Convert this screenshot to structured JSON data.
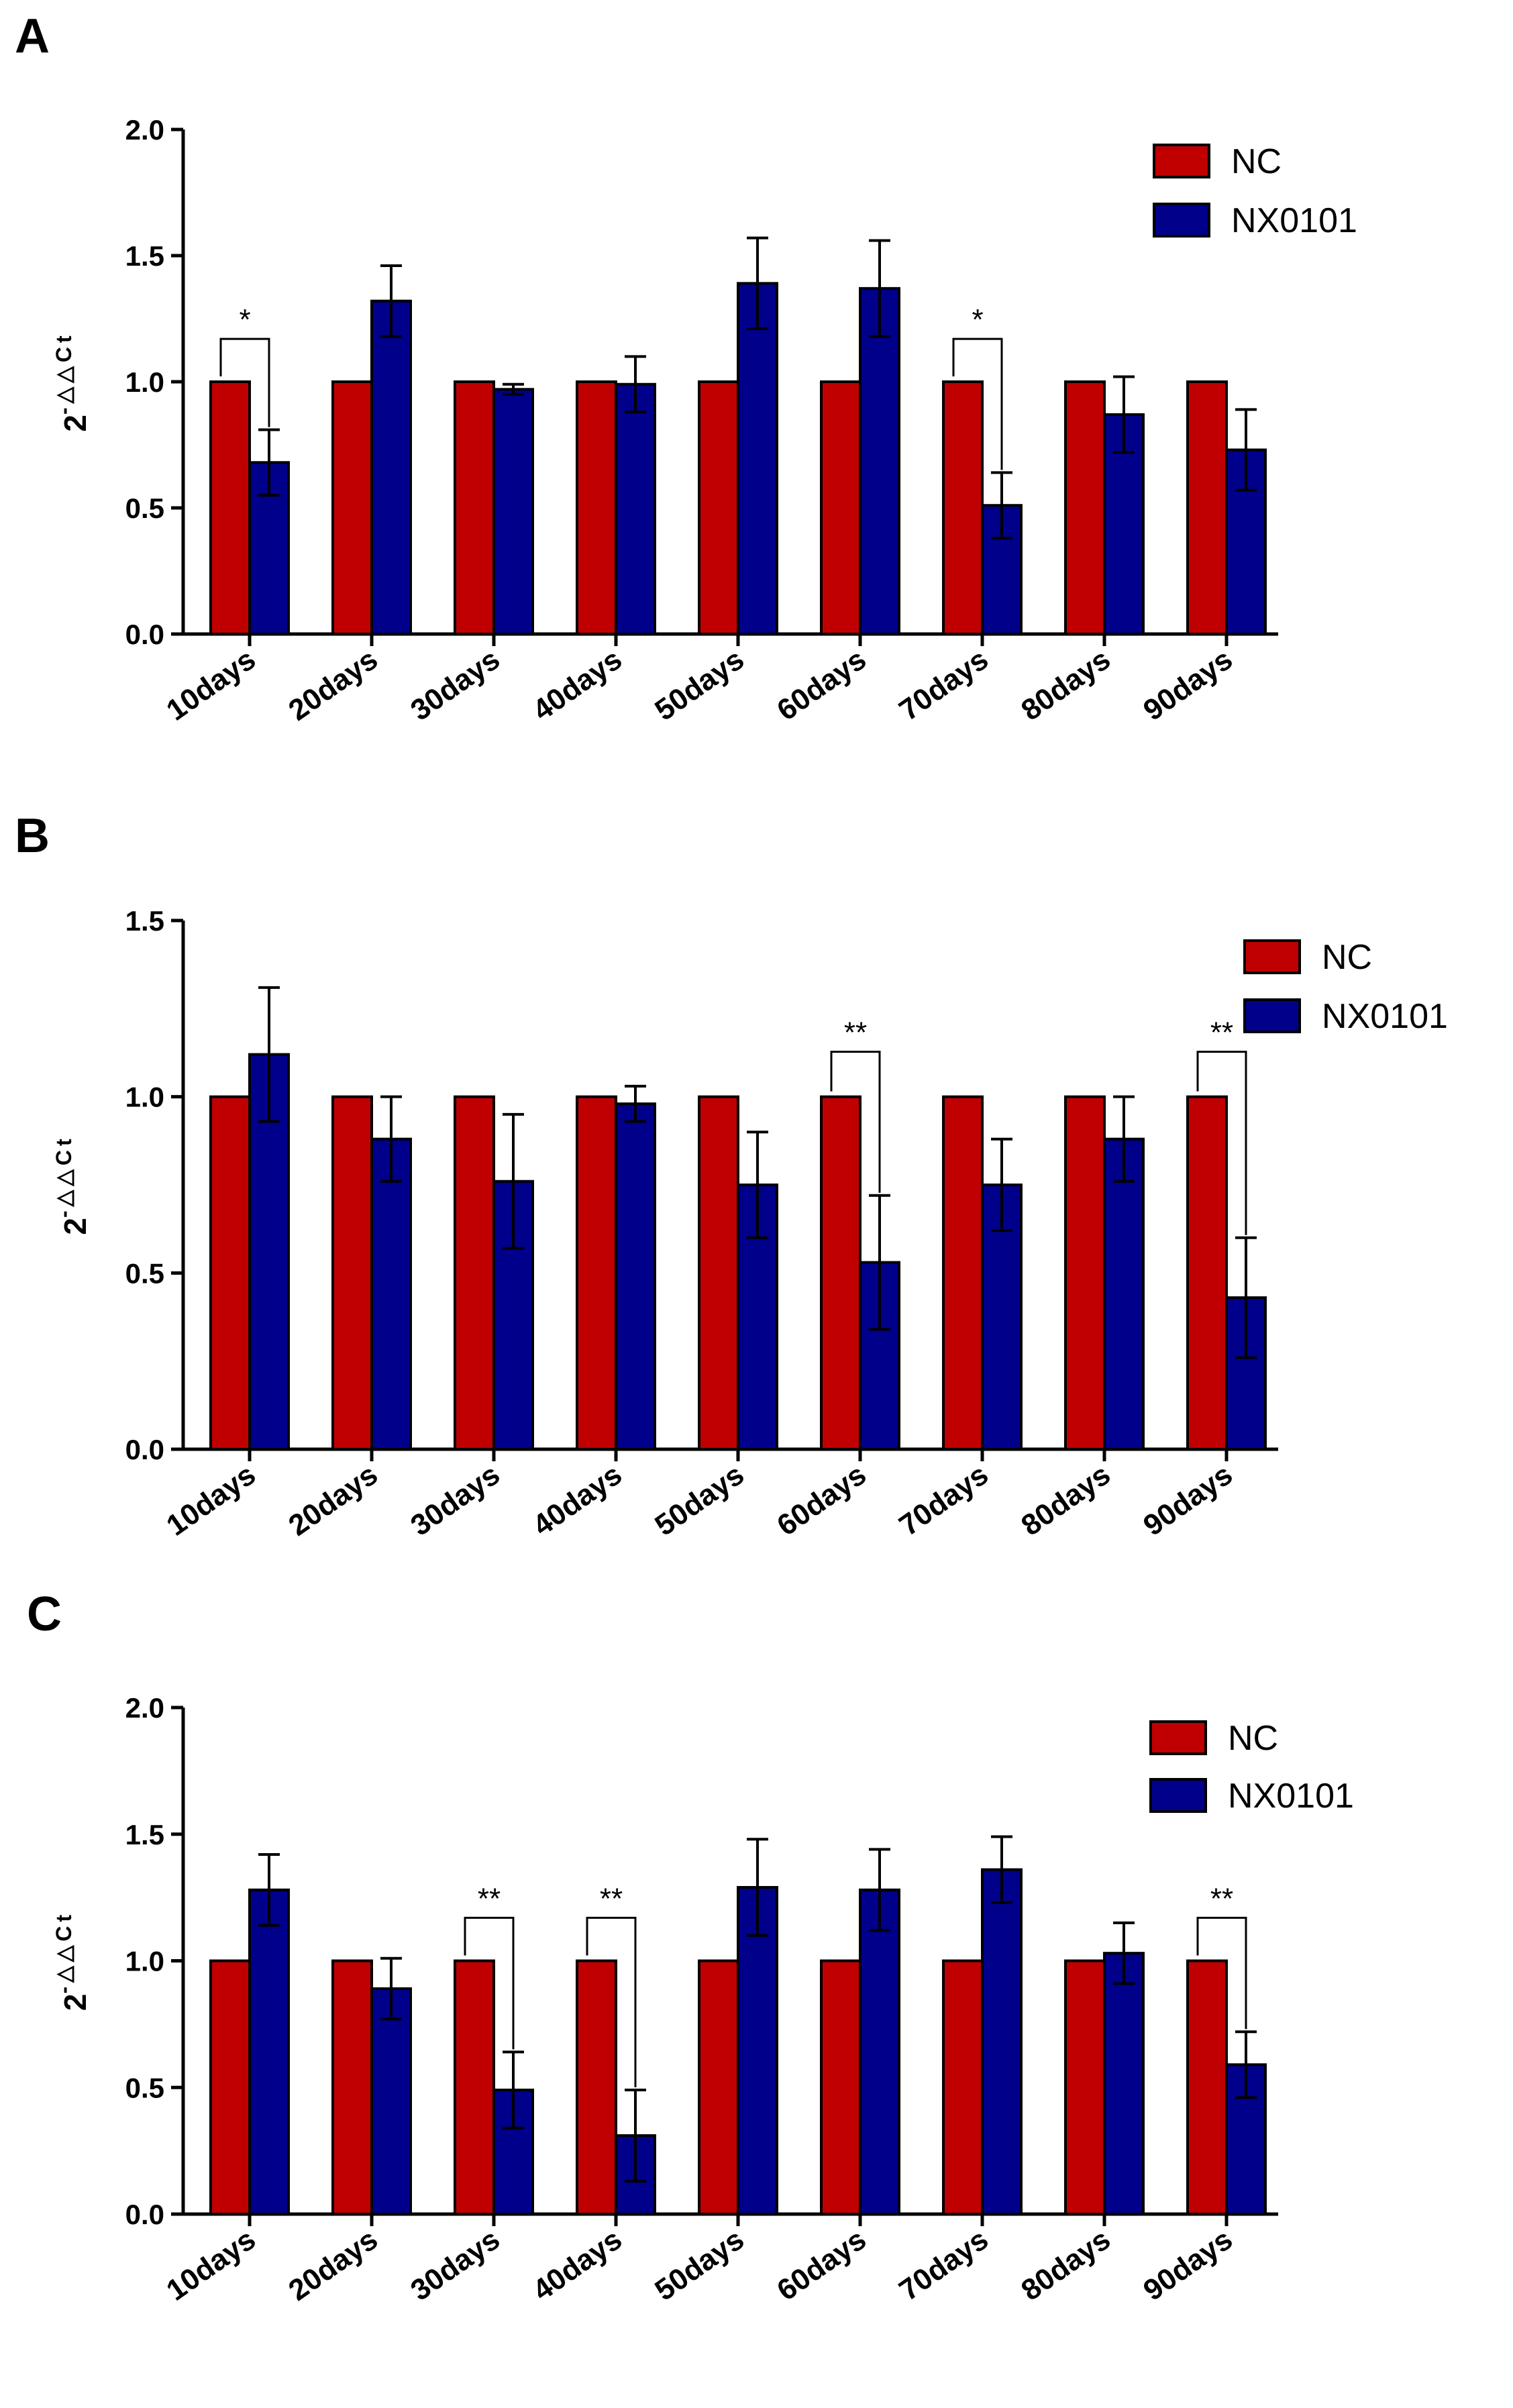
{
  "chart_data": [
    {
      "panel": "A",
      "type": "bar",
      "ylabel": {
        "base": "2",
        "exponent": "-△△Ct"
      },
      "ylim": [
        0,
        2.0
      ],
      "yticks": [
        "0.0",
        "0.5",
        "1.0",
        "1.5",
        "2.0"
      ],
      "categories": [
        "10days",
        "20days",
        "30days",
        "40days",
        "50days",
        "60days",
        "70days",
        "80days",
        "90days"
      ],
      "series": [
        {
          "name": "NC",
          "color": "#c00000",
          "values": [
            1,
            1,
            1,
            1,
            1,
            1,
            1,
            1,
            1
          ],
          "errors": [
            0,
            0,
            0,
            0,
            0,
            0,
            0,
            0,
            0
          ]
        },
        {
          "name": "NX0101",
          "color": "#00008b",
          "values": [
            0.68,
            1.32,
            0.97,
            0.99,
            1.39,
            1.37,
            0.51,
            0.87,
            0.73
          ],
          "errors": [
            0.13,
            0.14,
            0.02,
            0.11,
            0.18,
            0.19,
            0.13,
            0.15,
            0.16
          ]
        }
      ],
      "significance": [
        {
          "category": "10days",
          "label": "*"
        },
        {
          "category": "70days",
          "label": "*"
        }
      ],
      "legend": "top-right"
    },
    {
      "panel": "B",
      "type": "bar",
      "ylabel": {
        "base": "2",
        "exponent": "-△△Ct"
      },
      "ylim": [
        0,
        1.5
      ],
      "yticks": [
        "0.0",
        "0.5",
        "1.0",
        "1.5"
      ],
      "categories": [
        "10days",
        "20days",
        "30days",
        "40days",
        "50days",
        "60days",
        "70days",
        "80days",
        "90days"
      ],
      "series": [
        {
          "name": "NC",
          "color": "#c00000",
          "values": [
            1,
            1,
            1,
            1,
            1,
            1,
            1,
            1,
            1
          ],
          "errors": [
            0,
            0,
            0,
            0,
            0,
            0,
            0,
            0,
            0
          ]
        },
        {
          "name": "NX0101",
          "color": "#00008b",
          "values": [
            1.12,
            0.88,
            0.76,
            0.98,
            0.75,
            0.53,
            0.75,
            0.88,
            0.43
          ],
          "errors": [
            0.19,
            0.12,
            0.19,
            0.05,
            0.15,
            0.19,
            0.13,
            0.12,
            0.17
          ]
        }
      ],
      "significance": [
        {
          "category": "60days",
          "label": "**"
        },
        {
          "category": "90days",
          "label": "**"
        }
      ],
      "legend": "top-right"
    },
    {
      "panel": "C",
      "type": "bar",
      "ylabel": {
        "base": "2",
        "exponent": "-△△Ct"
      },
      "ylim": [
        0,
        2.0
      ],
      "yticks": [
        "0.0",
        "0.5",
        "1.0",
        "1.5",
        "2.0"
      ],
      "categories": [
        "10days",
        "20days",
        "30days",
        "40days",
        "50days",
        "60days",
        "70days",
        "80days",
        "90days"
      ],
      "series": [
        {
          "name": "NC",
          "color": "#c00000",
          "values": [
            1,
            1,
            1,
            1,
            1,
            1,
            1,
            1,
            1
          ],
          "errors": [
            0,
            0,
            0,
            0,
            0,
            0,
            0,
            0,
            0
          ]
        },
        {
          "name": "NX0101",
          "color": "#00008b",
          "values": [
            1.28,
            0.89,
            0.49,
            0.31,
            1.29,
            1.28,
            1.36,
            1.03,
            0.59
          ],
          "errors": [
            0.14,
            0.12,
            0.15,
            0.18,
            0.19,
            0.16,
            0.13,
            0.12,
            0.13
          ]
        }
      ],
      "significance": [
        {
          "category": "30days",
          "label": "**"
        },
        {
          "category": "40days",
          "label": "**"
        },
        {
          "category": "90days",
          "label": "**"
        }
      ],
      "legend": "top-right"
    }
  ]
}
